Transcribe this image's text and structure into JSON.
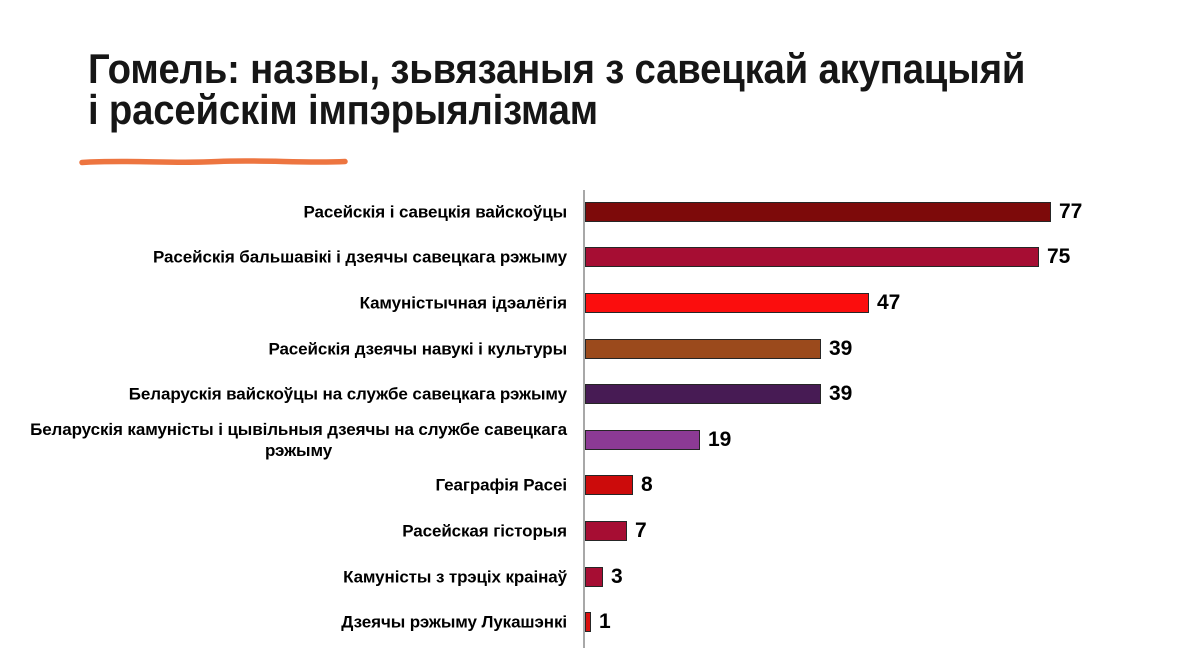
{
  "title": {
    "line1": "Гомель: назвы, зьвязаныя з савецкай акупацыяй",
    "line2": "і расейскім імпэрыялізмам"
  },
  "accent_underline_color": "#ed7540",
  "chart_data": {
    "type": "bar",
    "orientation": "horizontal",
    "title": "Гомель: назвы, зьвязаныя з савецкай акупацыяй і расейскім імпэрыялізмам",
    "categories": [
      "Расейскія і савецкія вайскоўцы",
      "Расейскія бальшавікі і дзеячы савецкага рэжыму",
      "Камуністычная ідэалёгія",
      "Расейскія дзеячы навукі і культуры",
      "Беларускія вайскоўцы на службе савецкага рэжыму",
      "Беларускія камуністы і цывільныя дзеячы на службе савецкага\nрэжыму",
      "Геаграфія Расеі",
      "Расейская гісторыя",
      "Камуністы з трэціх краінаў",
      "Дзеячы рэжыму Лукашэнкі"
    ],
    "values": [
      77,
      75,
      47,
      39,
      39,
      19,
      8,
      7,
      3,
      1
    ],
    "bar_colors": [
      "#7d0a0a",
      "#a60d33",
      "#fb0d0d",
      "#9b4a1c",
      "#471b54",
      "#8c3a94",
      "#cc0b0b",
      "#a60d33",
      "#a60d33",
      "#d8100e"
    ],
    "value_labels_shown": true,
    "xlim": [
      0,
      80
    ],
    "axis_color": "#a8a8a8",
    "grid": false,
    "legend": false
  }
}
